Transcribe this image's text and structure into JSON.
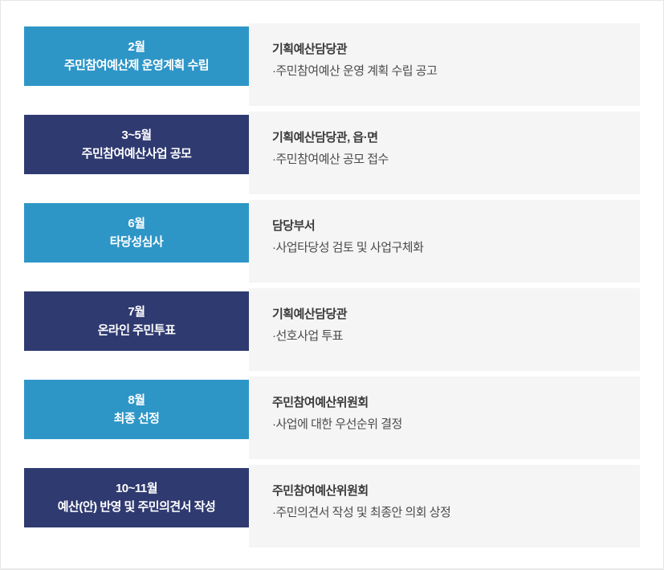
{
  "colors": {
    "step_blue": "#2e96c7",
    "step_navy": "#2f3a70",
    "content_bg": "#f5f5f5",
    "page_border": "#e7e7e7",
    "label_text": "#ffffff",
    "dept_text": "#3a3a3a",
    "detail_text": "#4b4b4b"
  },
  "rows": [
    {
      "period": "2월",
      "title": "주민참여예산제 운영계획 수립",
      "department": "기획예산담당관",
      "detail": "·주민참여예산 운영 계획 수립 공고",
      "color": "#2e96c7"
    },
    {
      "period": "3~5월",
      "title": "주민참여예산사업 공모",
      "department": "기획예산담당관, 읍·면",
      "detail": "·주민참여예산 공모 접수",
      "color": "#2f3a70"
    },
    {
      "period": "6월",
      "title": "타당성심사",
      "department": "담당부서",
      "detail": "·사업타당성 검토 및 사업구체화",
      "color": "#2e96c7"
    },
    {
      "period": "7월",
      "title": "온라인 주민투표",
      "department": "기획예산담당관",
      "detail": "·선호사업 투표",
      "color": "#2f3a70"
    },
    {
      "period": "8월",
      "title": "최종 선정",
      "department": "주민참여예산위원회",
      "detail": "·사업에 대한 우선순위 결정",
      "color": "#2e96c7"
    },
    {
      "period": "10~11월",
      "title": "예산(안) 반영 및 주민의견서 작성",
      "department": "주민참여예산위원회",
      "detail": "·주민의견서 작성 및 최종안 의회 상정",
      "color": "#2f3a70"
    }
  ]
}
